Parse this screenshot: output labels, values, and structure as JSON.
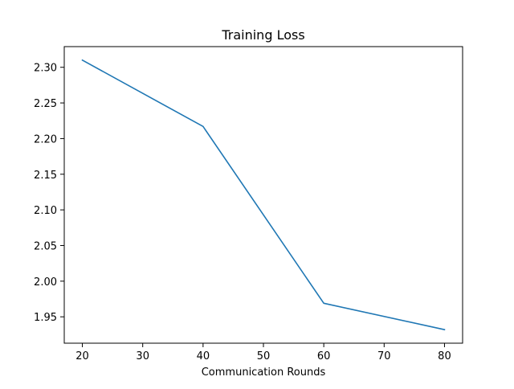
{
  "chart_data": {
    "type": "line",
    "title": "Training Loss",
    "xlabel": "Communication Rounds",
    "ylabel": "",
    "x": [
      20,
      40,
      60,
      80
    ],
    "series": [
      {
        "values": [
          2.31,
          2.217,
          1.969,
          1.932
        ],
        "color": "#1f77b4"
      }
    ],
    "xlim": [
      17,
      83
    ],
    "ylim": [
      1.913,
      2.329
    ],
    "xticks": [
      20,
      30,
      40,
      50,
      60,
      70,
      80
    ],
    "yticks": [
      1.95,
      2.0,
      2.05,
      2.1,
      2.15,
      2.2,
      2.25,
      2.3
    ],
    "xtick_labels": [
      "20",
      "30",
      "40",
      "50",
      "60",
      "70",
      "80"
    ],
    "ytick_labels": [
      "1.95",
      "2.00",
      "2.05",
      "2.10",
      "2.15",
      "2.20",
      "2.25",
      "2.30"
    ],
    "grid": false,
    "legend": false
  }
}
